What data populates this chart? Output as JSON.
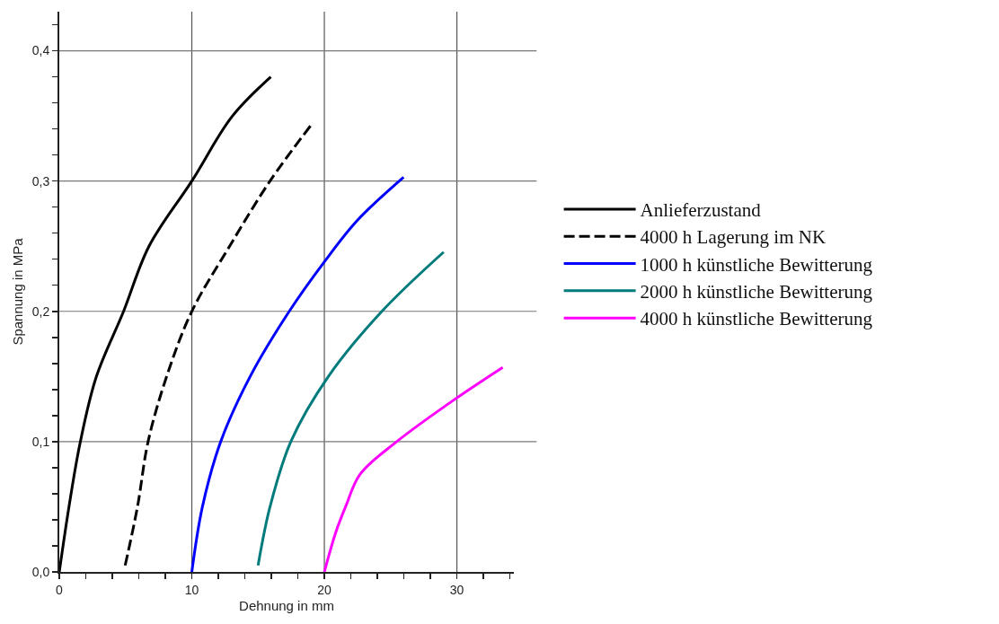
{
  "chart_data": {
    "type": "line",
    "xlabel": "Dehnung in mm",
    "ylabel": "Spannung in MPa",
    "xlim": [
      0,
      34.3
    ],
    "ylim": [
      0,
      0.43
    ],
    "xticks": [
      0,
      {
        "value": 2,
        "label": null
      },
      {
        "value": 4,
        "label": null
      },
      {
        "value": 6,
        "label": null
      },
      {
        "value": 8,
        "label": null
      },
      10,
      {
        "value": 12,
        "label": null
      },
      {
        "value": 14,
        "label": null
      },
      {
        "value": 16,
        "label": null
      },
      {
        "value": 18,
        "label": null
      },
      20,
      {
        "value": 22,
        "label": null
      },
      {
        "value": 24,
        "label": null
      },
      {
        "value": 26,
        "label": null
      },
      {
        "value": 28,
        "label": null
      },
      30,
      {
        "value": 32,
        "label": null
      },
      {
        "value": 34,
        "label": null
      }
    ],
    "yticks": [
      {
        "value": 0,
        "label": "0,0"
      },
      {
        "value": 0.02,
        "label": null
      },
      {
        "value": 0.04,
        "label": null
      },
      {
        "value": 0.06,
        "label": null
      },
      {
        "value": 0.08,
        "label": null
      },
      {
        "value": 0.1,
        "label": "0,1"
      },
      {
        "value": 0.12,
        "label": null
      },
      {
        "value": 0.14,
        "label": null
      },
      {
        "value": 0.16,
        "label": null
      },
      {
        "value": 0.18,
        "label": null
      },
      {
        "value": 0.2,
        "label": "0,2"
      },
      {
        "value": 0.22,
        "label": null
      },
      {
        "value": 0.24,
        "label": null
      },
      {
        "value": 0.26,
        "label": null
      },
      {
        "value": 0.28,
        "label": null
      },
      {
        "value": 0.3,
        "label": "0,3"
      },
      {
        "value": 0.32,
        "label": null
      },
      {
        "value": 0.34,
        "label": null
      },
      {
        "value": 0.36,
        "label": null
      },
      {
        "value": 0.38,
        "label": null
      },
      {
        "value": 0.4,
        "label": "0,4"
      },
      {
        "value": 0.42,
        "label": null
      }
    ],
    "grid": true,
    "legend": "right",
    "marker": "none",
    "series": [
      {
        "name": "Anlieferzustand",
        "color": "#000000",
        "line_style": "solid",
        "x": [
          0,
          0.73,
          1.59,
          2.8,
          4.85,
          6.77,
          10,
          13.07,
          15.96
        ],
        "values": [
          0,
          0.05,
          0.1,
          0.15,
          0.2,
          0.25,
          0.3,
          0.35,
          0.38
        ]
      },
      {
        "name": "4000 h Lagerung im NK",
        "color": "#000000",
        "line_style": "dashed",
        "x": [
          4.97,
          5.9,
          6.7,
          8.1,
          10,
          12.85,
          15.9,
          19
        ],
        "values": [
          0.005,
          0.05,
          0.1,
          0.15,
          0.2,
          0.25,
          0.3,
          0.343
        ]
      },
      {
        "name": "1000 h künstliche Bewitterung",
        "color": "#0000ff",
        "line_style": "solid",
        "x": [
          10,
          10.8,
          12.18,
          14.4,
          17.35,
          20,
          22.5,
          25.98
        ],
        "values": [
          0,
          0.05,
          0.1,
          0.15,
          0.2,
          0.238,
          0.27,
          0.303
        ]
      },
      {
        "name": "2000 h künstliche Bewitterung",
        "color": "#007b7b",
        "line_style": "solid",
        "x": [
          15,
          15.9,
          17.47,
          20.3,
          24.34,
          29
        ],
        "values": [
          0.005,
          0.05,
          0.1,
          0.15,
          0.2,
          0.2455
        ]
      },
      {
        "name": "4000 h künstliche Bewitterung",
        "color": "#ff00ff",
        "line_style": "solid",
        "x": [
          20,
          20.85,
          21.6,
          22.7,
          25.46,
          30,
          33.46
        ],
        "values": [
          0,
          0.03,
          0.05,
          0.075,
          0.1,
          0.1336,
          0.157
        ]
      }
    ]
  }
}
